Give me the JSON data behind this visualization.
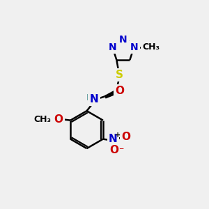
{
  "bg_color": "#f0f0f0",
  "bond_color": "#000000",
  "atom_colors": {
    "N": "#0000cd",
    "O": "#cc0000",
    "S": "#cccc00",
    "C": "#000000",
    "H": "#5a9a9a"
  },
  "bond_lw": 1.8,
  "font_size": 10
}
